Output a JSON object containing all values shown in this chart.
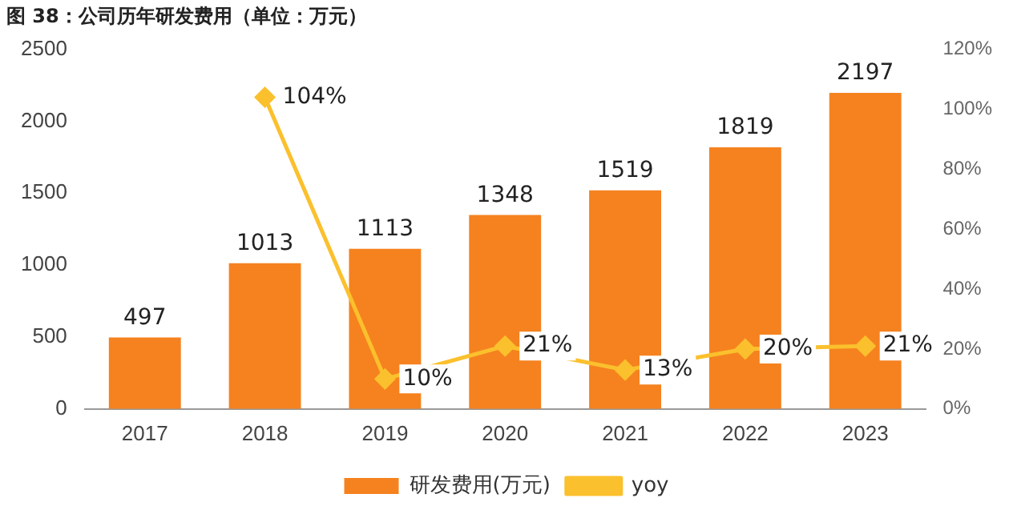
{
  "chart_data": {
    "type": "bar",
    "title": "图 38：公司历年研发费用（单位：万元）",
    "categories": [
      "2017",
      "2018",
      "2019",
      "2020",
      "2021",
      "2022",
      "2023"
    ],
    "series": [
      {
        "name": "研发费用(万元)",
        "color": "#f5821f",
        "values": [
          497,
          1013,
          1113,
          1348,
          1519,
          1819,
          2197
        ],
        "value_labels": [
          "497",
          "1013",
          "1113",
          "1348",
          "1519",
          "1819",
          "2197"
        ]
      },
      {
        "name": "yoy",
        "type": "line",
        "axis": "y2",
        "color": "#fbc02d",
        "values": [
          null,
          104,
          10,
          21,
          13,
          20,
          21
        ],
        "value_labels": [
          null,
          "104%",
          "10%",
          "21%",
          "13%",
          "20%",
          "21%"
        ]
      }
    ],
    "ylim": [
      0,
      2500
    ],
    "yticks": [
      0,
      500,
      1000,
      1500,
      2000,
      2500
    ],
    "y2lim": [
      0,
      120
    ],
    "y2ticks": [
      {
        "value": 0,
        "label": "0%"
      },
      {
        "value": 20,
        "label": "20%"
      },
      {
        "value": 40,
        "label": "40%"
      },
      {
        "value": 60,
        "label": "60%"
      },
      {
        "value": 80,
        "label": "80%"
      },
      {
        "value": 100,
        "label": "100%"
      },
      {
        "value": 120,
        "label": "120%"
      }
    ],
    "grid": false,
    "legend": "bottom",
    "marker": "diamond",
    "line_style": "solid"
  }
}
